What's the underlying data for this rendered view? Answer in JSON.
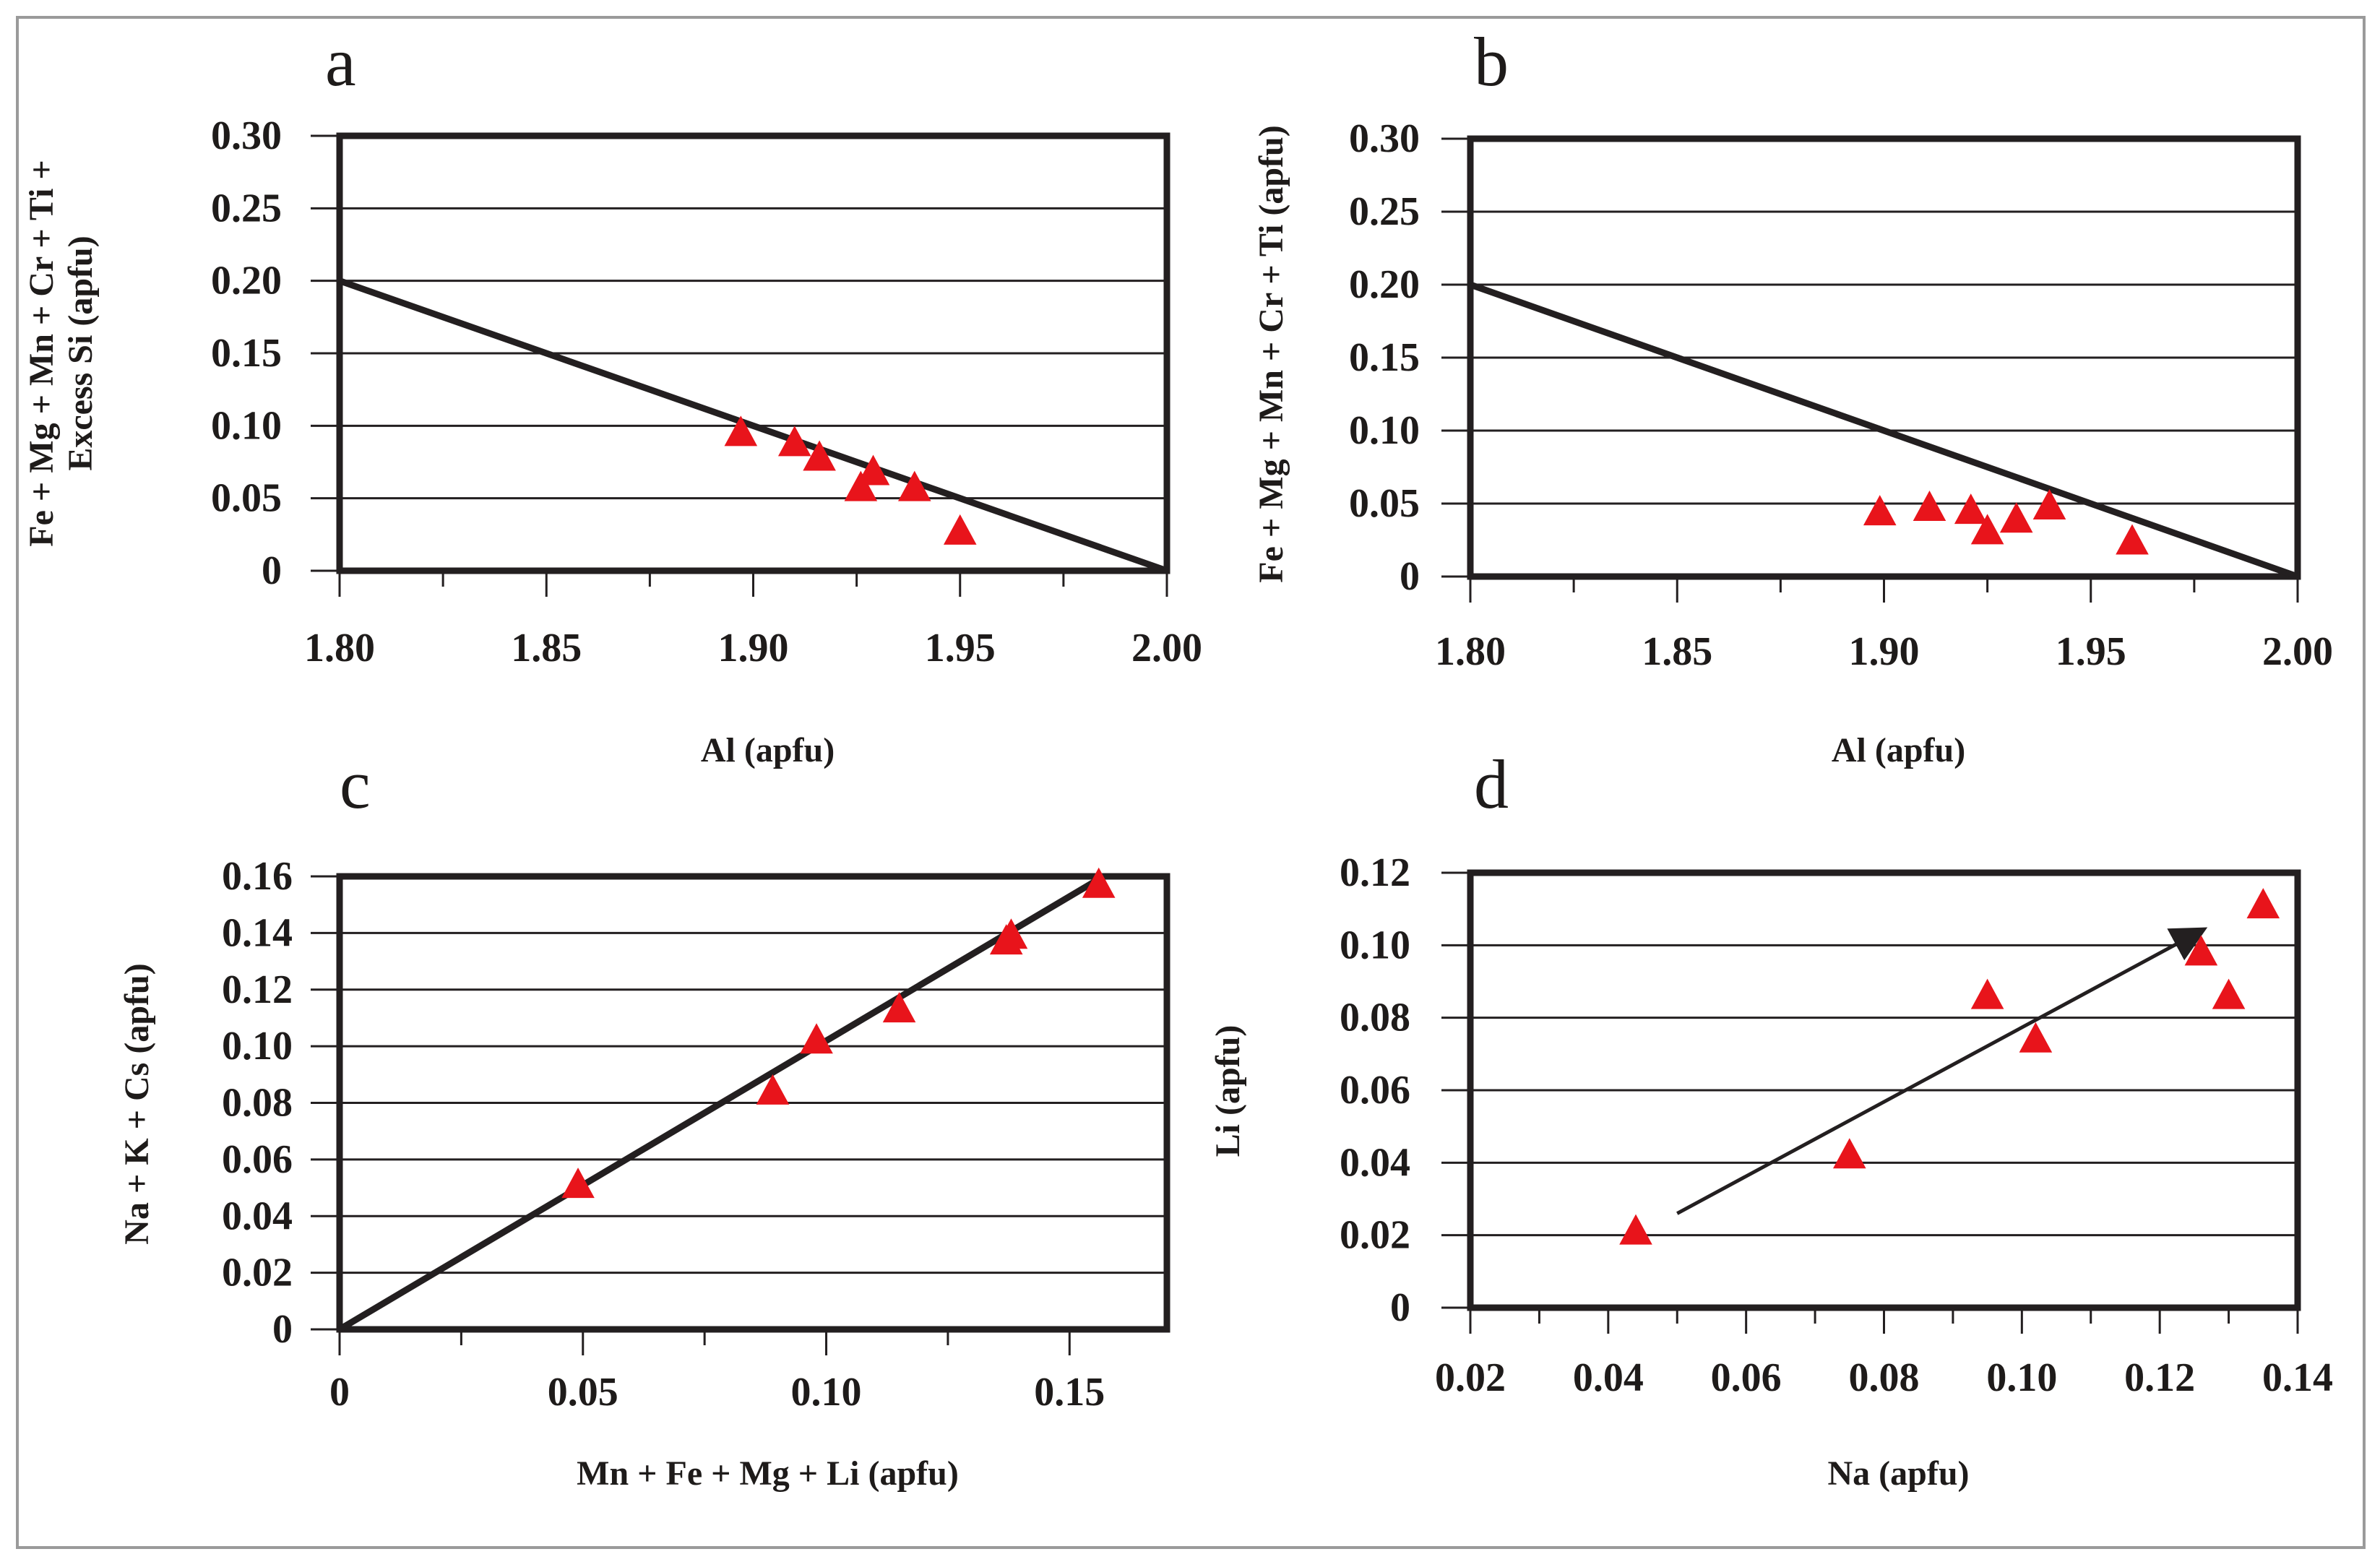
{
  "figure": {
    "colors": {
      "frame": "#231f20",
      "grid": "#231f20",
      "marker": "#e8141b",
      "text": "#1e1b1a",
      "background": "#ffffff"
    },
    "marker_shape": "triangle"
  },
  "chart_data": [
    {
      "panel": "a",
      "type": "scatter",
      "title": "",
      "xlabel": "Al (apfu)",
      "ylabel": [
        "Fe + Mg + Mn + Cr + Ti +",
        "Excess Si (apfu)"
      ],
      "xlim": [
        1.8,
        2.0
      ],
      "ylim": [
        0,
        0.3
      ],
      "xticks": [
        1.8,
        1.85,
        1.9,
        1.95,
        2.0
      ],
      "xtick_labels": [
        "1.80",
        "1.85",
        "1.90",
        "1.95",
        "2.00"
      ],
      "yticks": [
        0,
        0.05,
        0.1,
        0.15,
        0.2,
        0.25,
        0.3
      ],
      "ytick_labels": [
        "0",
        "0.05",
        "0.10",
        "0.15",
        "0.20",
        "0.25",
        "0.30"
      ],
      "grid": "horizontal",
      "line": {
        "x": [
          1.8,
          2.0
        ],
        "y": [
          0.2,
          0.0
        ]
      },
      "points": {
        "x": [
          1.897,
          1.91,
          1.916,
          1.926,
          1.929,
          1.939,
          1.95
        ],
        "y": [
          0.095,
          0.088,
          0.078,
          0.057,
          0.068,
          0.057,
          0.027
        ]
      }
    },
    {
      "panel": "b",
      "type": "scatter",
      "title": "",
      "xlabel": "Al (apfu)",
      "ylabel": [
        "Fe + Mg + Mn + Cr + Ti (apfu)"
      ],
      "xlim": [
        1.8,
        2.0
      ],
      "ylim": [
        0,
        0.3
      ],
      "xticks": [
        1.8,
        1.85,
        1.9,
        1.95,
        2.0
      ],
      "xtick_labels": [
        "1.80",
        "1.85",
        "1.90",
        "1.95",
        "2.00"
      ],
      "yticks": [
        0,
        0.05,
        0.1,
        0.15,
        0.2,
        0.25,
        0.3
      ],
      "ytick_labels": [
        "0",
        "0.05",
        "0.10",
        "0.15",
        "0.20",
        "0.25",
        "0.30"
      ],
      "grid": "horizontal",
      "line": {
        "x": [
          1.8,
          2.0
        ],
        "y": [
          0.2,
          0.0
        ]
      },
      "points": {
        "x": [
          1.899,
          1.911,
          1.921,
          1.925,
          1.932,
          1.94,
          1.96
        ],
        "y": [
          0.044,
          0.047,
          0.045,
          0.031,
          0.039,
          0.048,
          0.024
        ]
      }
    },
    {
      "panel": "c",
      "type": "scatter",
      "title": "",
      "xlabel": "Mn + Fe + Mg + Li (apfu)",
      "ylabel": [
        "Na + K + Cs (apfu)"
      ],
      "xlim": [
        0,
        0.17
      ],
      "ylim": [
        0,
        0.16
      ],
      "xticks": [
        0,
        0.05,
        0.1,
        0.15
      ],
      "xtick_labels": [
        "0",
        "0.05",
        "0.10",
        "0.15"
      ],
      "yticks": [
        0,
        0.02,
        0.04,
        0.06,
        0.08,
        0.1,
        0.12,
        0.14,
        0.16
      ],
      "ytick_labels": [
        "0",
        "0.02",
        "0.04",
        "0.06",
        "0.08",
        "0.10",
        "0.12",
        "0.14",
        "0.16"
      ],
      "grid": "horizontal",
      "line": {
        "x": [
          0,
          0.155
        ],
        "y": [
          0,
          0.158
        ]
      },
      "points": {
        "x": [
          0.049,
          0.089,
          0.098,
          0.115,
          0.137,
          0.138,
          0.156
        ],
        "y": [
          0.051,
          0.084,
          0.102,
          0.113,
          0.137,
          0.139,
          0.157
        ]
      }
    },
    {
      "panel": "d",
      "type": "scatter",
      "title": "",
      "xlabel": "Na (apfu)",
      "ylabel": [
        "Li (apfu)"
      ],
      "xlim": [
        0.02,
        0.14
      ],
      "ylim": [
        0,
        0.12
      ],
      "xticks": [
        0.02,
        0.04,
        0.06,
        0.08,
        0.1,
        0.12,
        0.14
      ],
      "xtick_labels": [
        "0.02",
        "0.04",
        "0.06",
        "0.08",
        "0.10",
        "0.12",
        "0.14"
      ],
      "yticks": [
        0,
        0.02,
        0.04,
        0.06,
        0.08,
        0.1,
        0.12
      ],
      "ytick_labels": [
        "0",
        "0.02",
        "0.04",
        "0.06",
        "0.08",
        "0.10",
        "0.12"
      ],
      "grid": "horizontal",
      "arrow": {
        "x": [
          0.05,
          0.126
        ],
        "y": [
          0.026,
          0.104
        ]
      },
      "points": {
        "x": [
          0.044,
          0.075,
          0.095,
          0.102,
          0.126,
          0.13,
          0.135
        ],
        "y": [
          0.021,
          0.042,
          0.086,
          0.074,
          0.098,
          0.086,
          0.111
        ]
      }
    }
  ]
}
